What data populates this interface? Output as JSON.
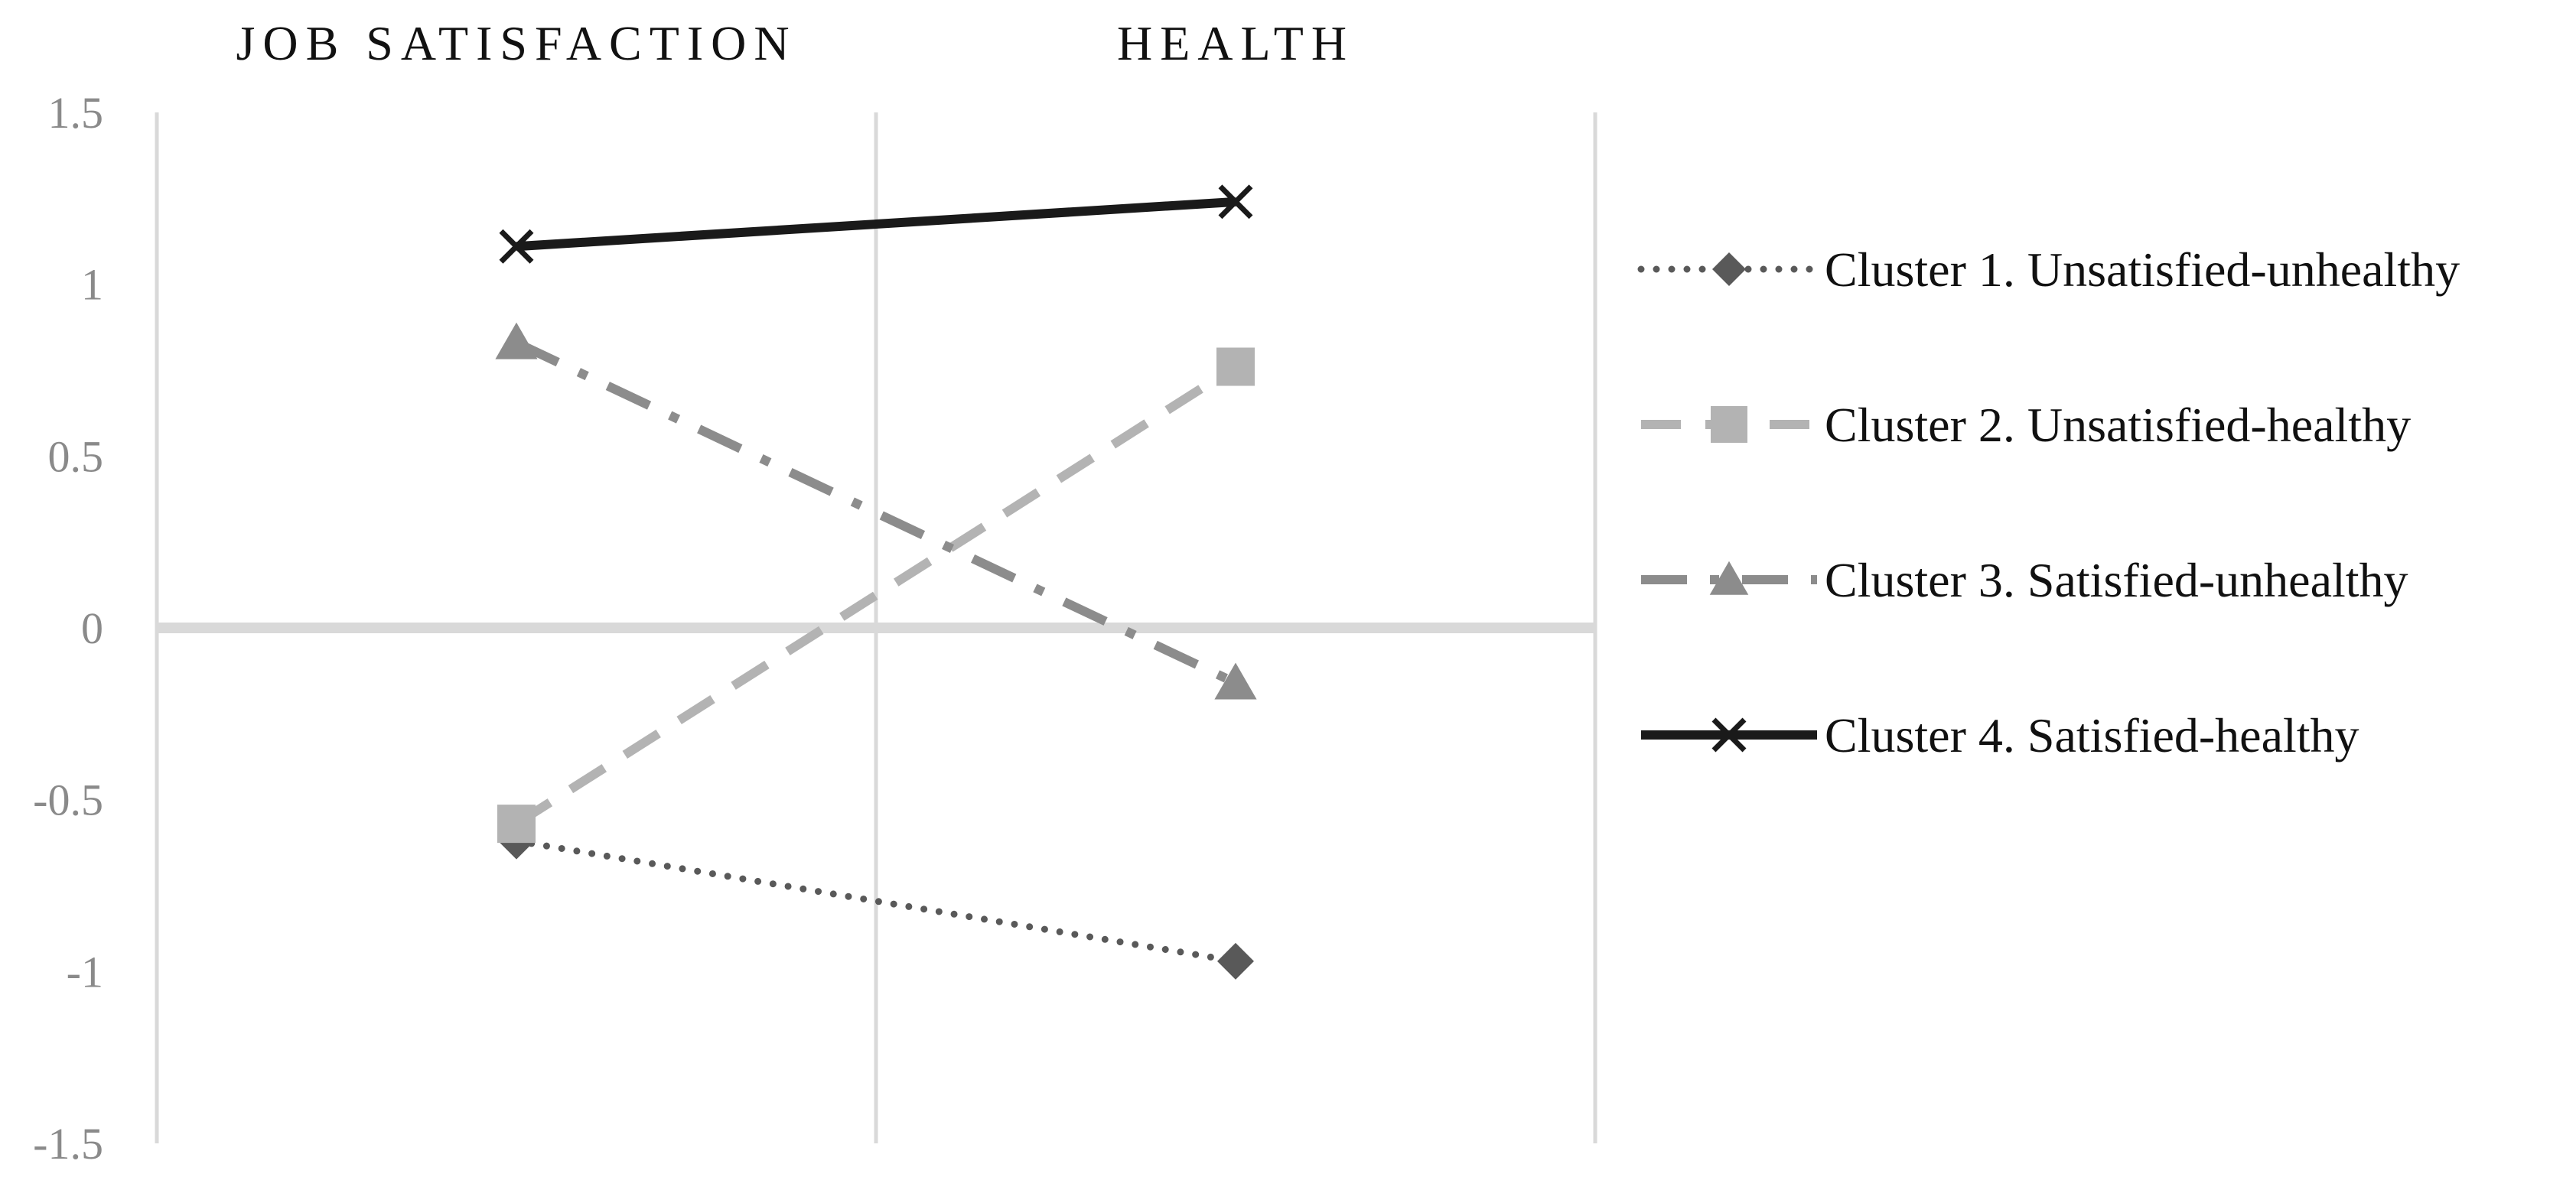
{
  "chart_data": {
    "type": "line",
    "title": "",
    "xlabel": "",
    "ylabel": "",
    "categories": [
      "JOB SATISFACTION",
      "HEALTH"
    ],
    "ylim": [
      -1.5,
      1.5
    ],
    "yticks": [
      1.5,
      1,
      0.5,
      0,
      -0.5,
      -1,
      -1.5
    ],
    "ytick_labels": [
      "1.5",
      "1",
      "0.5",
      "0",
      "-0.5",
      "-1",
      "-1.5"
    ],
    "grid": "vertical",
    "legend_position": "right",
    "series": [
      {
        "name": "Cluster 1. Unsatisfied-unhealthy",
        "values": [
          -0.62,
          -0.97
        ],
        "color": "#595959",
        "line_style": "dotted",
        "marker": "diamond-icon"
      },
      {
        "name": "Cluster 2. Unsatisfied-healthy",
        "values": [
          -0.57,
          0.76
        ],
        "color": "#b3b3b3",
        "line_style": "dashed",
        "marker": "square-icon"
      },
      {
        "name": "Cluster 3. Satisfied-unhealthy",
        "values": [
          0.83,
          -0.16
        ],
        "color": "#8c8c8c",
        "line_style": "dash-dot",
        "marker": "triangle-icon"
      },
      {
        "name": "Cluster 4. Satisfied-healthy",
        "values": [
          1.11,
          1.24
        ],
        "color": "#1a1a1a",
        "line_style": "solid",
        "marker": "x-cross-icon"
      }
    ]
  }
}
